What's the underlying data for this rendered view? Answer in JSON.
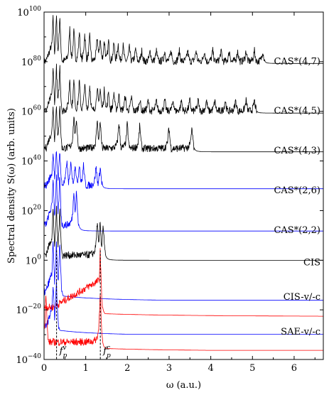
{
  "chart_data": {
    "type": "line",
    "title": "",
    "xlabel": "ω (a.u.)",
    "ylabel": "Spectral density S(ω) (arb. units)",
    "xlim": [
      0,
      6.7
    ],
    "ylim_log10": [
      -40,
      100
    ],
    "x_ticks": [
      0,
      1,
      2,
      3,
      4,
      5,
      6
    ],
    "y_ticks": [
      {
        "exp": -40,
        "base": "10",
        "sup": "−40"
      },
      {
        "exp": -20,
        "base": "10",
        "sup": "−20"
      },
      {
        "exp": 0,
        "base": "10",
        "sup": "0"
      },
      {
        "exp": 20,
        "base": "10",
        "sup": "20"
      },
      {
        "exp": 40,
        "base": "10",
        "sup": "40"
      },
      {
        "exp": 60,
        "base": "10",
        "sup": "60"
      },
      {
        "exp": 80,
        "base": "10",
        "sup": "80"
      },
      {
        "exp": 100,
        "base": "10",
        "sup": "100"
      }
    ],
    "y_scale": "log",
    "grid": false,
    "series": [
      {
        "name": "CAS*(4,7)",
        "color": "#000000",
        "baseline_exp": 78,
        "peak_exp": 97,
        "peaks": [
          0.22,
          0.3,
          0.38,
          0.62,
          0.72,
          0.85,
          0.98,
          1.1,
          1.28,
          1.35,
          1.45,
          1.55,
          1.68,
          1.78,
          1.9,
          2.05,
          2.2,
          2.35,
          2.55,
          2.7,
          2.9,
          3.05,
          3.25,
          3.45,
          3.65,
          3.85,
          4.05,
          4.25,
          4.45,
          4.65,
          4.85,
          5.05,
          5.25
        ],
        "label_exp": 79
      },
      {
        "name": "CAS*(4,5)",
        "color": "#000000",
        "baseline_exp": 58,
        "peak_exp": 77,
        "peaks": [
          0.22,
          0.3,
          0.38,
          0.62,
          0.72,
          0.85,
          0.98,
          1.1,
          1.28,
          1.35,
          1.45,
          1.55,
          1.68,
          1.8,
          1.95,
          2.1,
          2.3,
          2.5,
          2.7,
          2.9,
          3.1,
          3.3,
          3.5,
          3.7,
          3.9,
          4.1,
          4.35,
          4.6,
          4.85,
          5.05
        ],
        "label_exp": 59
      },
      {
        "name": "CAS*(4,3)",
        "color": "#000000",
        "baseline_exp": 43,
        "peak_exp": 62,
        "peaks": [
          0.22,
          0.3,
          0.38,
          0.72,
          0.78,
          1.28,
          1.35,
          1.8,
          2.0,
          2.3,
          3.0,
          3.55
        ],
        "label_exp": 43
      },
      {
        "name": "CAS*(2,6)",
        "color": "#0000ff",
        "baseline_exp": 28,
        "peak_exp": 43,
        "peaks": [
          0.22,
          0.3,
          0.38,
          0.55,
          0.65,
          0.75,
          0.85,
          0.95,
          1.25,
          1.35
        ],
        "label_exp": 27
      },
      {
        "name": "CAS*(2,2)",
        "color": "#0000ff",
        "baseline_exp": 12,
        "peak_exp": 33,
        "peaks": [
          0.22,
          0.3,
          0.38,
          0.72,
          0.78
        ],
        "label_exp": 11
      },
      {
        "name": "CIS",
        "color": "#000000",
        "baseline_exp": 0,
        "peak_exp": 20,
        "peaks": [
          0.22,
          0.3,
          0.38,
          1.28,
          1.35,
          1.42
        ],
        "label_exp": -2
      },
      {
        "name": "CIS-v/-c",
        "color": "#0000ff",
        "baseline_exp": -15,
        "peak_exp": 6,
        "peaks": [
          0.22,
          0.3,
          0.38
        ],
        "label_exp": -16
      },
      {
        "name": "CIS-v/-c",
        "color": "#ff0000",
        "baseline_exp": -21,
        "peak_exp": 3,
        "peaks": [
          1.35
        ],
        "label_exp": null
      },
      {
        "name": "SAE-v/-c",
        "color": "#0000ff",
        "baseline_exp": -29,
        "peak_exp": -10,
        "peaks": [
          0.22,
          0.3
        ],
        "label_exp": -30
      },
      {
        "name": "SAE-v/-c",
        "color": "#ff0000",
        "baseline_exp": -35,
        "peak_exp": -13,
        "peaks": [
          0.05,
          1.35
        ],
        "label_exp": null
      }
    ],
    "annotations": [
      {
        "text": "f",
        "sub": "p",
        "sup": "v",
        "x": 0.3
      },
      {
        "text": "f",
        "sub": "p",
        "sup": "c",
        "x": 1.35
      }
    ]
  }
}
